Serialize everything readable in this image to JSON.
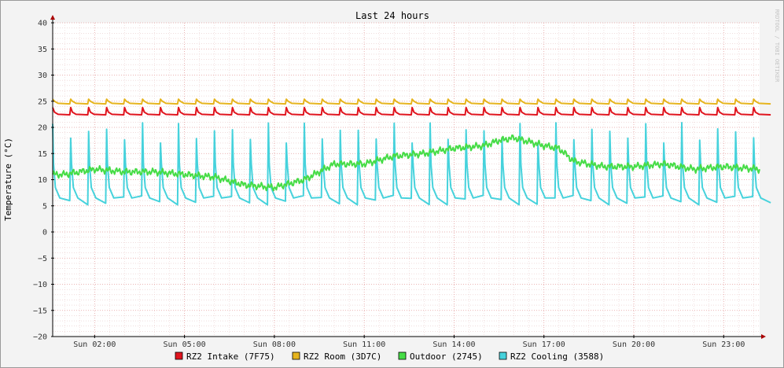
{
  "chart_data": {
    "type": "line",
    "title": "Last 24 hours",
    "xlabel": "",
    "ylabel": "Temperature (°C)",
    "ylim": [
      -20,
      40
    ],
    "yticks": [
      40,
      35,
      30,
      25,
      20,
      15,
      10,
      5,
      0,
      -5,
      -10,
      -15,
      -20
    ],
    "xlim_hours": [
      0.6,
      24.2
    ],
    "xticks": [
      {
        "hour": 2,
        "label": "Sun 02:00"
      },
      {
        "hour": 5,
        "label": "Sun 05:00"
      },
      {
        "hour": 8,
        "label": "Sun 08:00"
      },
      {
        "hour": 11,
        "label": "Sun 11:00"
      },
      {
        "hour": 14,
        "label": "Sun 14:00"
      },
      {
        "hour": 17,
        "label": "Sun 17:00"
      },
      {
        "hour": 20,
        "label": "Sun 20:00"
      },
      {
        "hour": 23,
        "label": "Sun 23:00"
      }
    ],
    "grid": true,
    "legend_position": "bottom",
    "watermark": "RRDTOOL / TOBI OETIKER",
    "series": [
      {
        "name": "RZ2 Intake (7F75)",
        "color": "#e0141e",
        "baseline": 22.5,
        "spike": 23.8,
        "cycle_hours": 0.6,
        "x": [
          0.6,
          24.2
        ]
      },
      {
        "name": "RZ2 Room (3D7C)",
        "color": "#e6b41e",
        "baseline": 24.6,
        "spike": 25.4,
        "cycle_hours": 0.6,
        "x": [
          0.6,
          24.2
        ]
      },
      {
        "name": "Outdoor (2745)",
        "color": "#46dc46",
        "x": [
          0.6,
          1.0,
          2.0,
          3.0,
          4.0,
          5.0,
          6.0,
          7.0,
          8.0,
          9.0,
          10.0,
          11.0,
          12.0,
          13.0,
          14.0,
          15.0,
          15.5,
          16.0,
          17.0,
          17.5,
          18.0,
          19.0,
          20.0,
          21.0,
          22.0,
          23.0,
          24.2
        ],
        "values": [
          11.0,
          11.0,
          12.0,
          11.5,
          11.5,
          11.0,
          10.5,
          9.0,
          8.5,
          10.0,
          13.0,
          13.0,
          14.5,
          15.0,
          16.0,
          16.5,
          17.5,
          18.0,
          16.5,
          16.0,
          13.5,
          12.5,
          12.5,
          13.0,
          12.0,
          12.5,
          12.0
        ]
      },
      {
        "name": "RZ2 Cooling (3588)",
        "color": "#46d2dc",
        "baseline_start": 7.0,
        "baseline_end": 5.0,
        "spike_max": 21.0,
        "spike_min": 17.0,
        "cycle_hours": 0.6,
        "x": [
          0.6,
          24.2
        ]
      }
    ]
  }
}
